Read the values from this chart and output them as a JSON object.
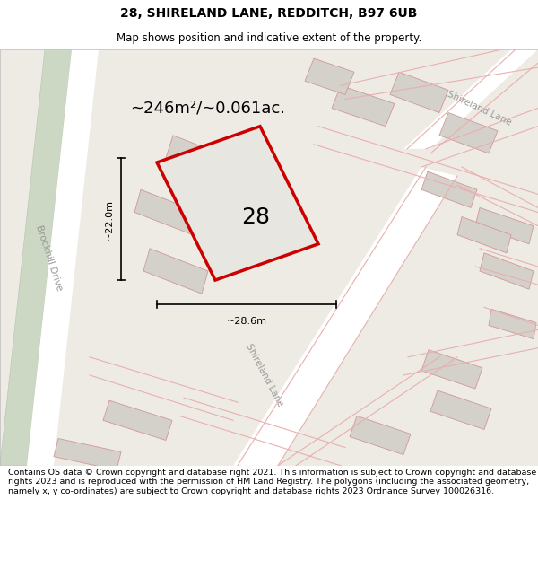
{
  "title": "28, SHIRELAND LANE, REDDITCH, B97 6UB",
  "subtitle": "Map shows position and indicative extent of the property.",
  "footer": "Contains OS data © Crown copyright and database right 2021. This information is subject to Crown copyright and database rights 2023 and is reproduced with the permission of HM Land Registry. The polygons (including the associated geometry, namely x, y co-ordinates) are subject to Crown copyright and database rights 2023 Ordnance Survey 100026316.",
  "area_text": "~246m²/~0.061ac.",
  "dim_height": "~22.0m",
  "dim_width": "~28.6m",
  "property_number": "28",
  "map_bg": "#eeebe5",
  "road_color": "#e8b0b0",
  "green_fill": "#ccd8c4",
  "green_edge": "#bbc9b2",
  "road_fill": "#ffffff",
  "property_stroke": "#cc0000",
  "property_fill": "#e8e6e0",
  "building_fill": "#d4d0ca",
  "building_stroke": "#d09898",
  "title_fontsize": 10,
  "subtitle_fontsize": 8.5,
  "footer_fontsize": 6.8,
  "area_fontsize": 13,
  "dim_fontsize": 8,
  "label_fontsize": 7.5,
  "number_fontsize": 18
}
